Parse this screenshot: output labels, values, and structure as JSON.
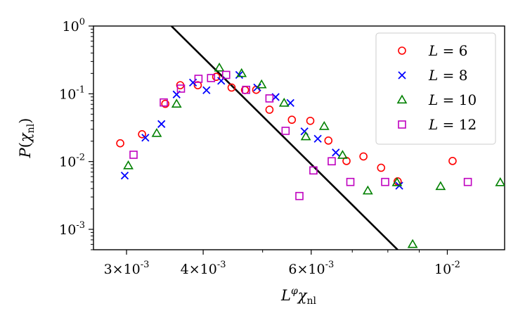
{
  "chart_data": {
    "type": "scatter",
    "xlabel": "L^φ χ_nl",
    "ylabel": "P(χ_nl)",
    "xscale": "log",
    "yscale": "log",
    "xlim": [
      0.00265,
      0.0124
    ],
    "ylim": [
      0.0005,
      1.0
    ],
    "x_ticks": [
      {
        "value": 0.003,
        "mantissa": "3",
        "exp": "-3"
      },
      {
        "value": 0.004,
        "mantissa": "4",
        "exp": "-3"
      },
      {
        "value": 0.006,
        "mantissa": "6",
        "exp": "-3"
      },
      {
        "value": 0.01,
        "mantissa": "",
        "exp": "-2"
      }
    ],
    "y_ticks": [
      {
        "value": 1.0,
        "exp": "0"
      },
      {
        "value": 0.1,
        "exp": "-1"
      },
      {
        "value": 0.01,
        "exp": "-2"
      },
      {
        "value": 0.001,
        "exp": "-3"
      }
    ],
    "legend_position": "top-right",
    "fit_line": {
      "x": [
        0.00355,
        0.0083
      ],
      "y": [
        1.0,
        0.0005
      ],
      "color": "#000000"
    },
    "series": [
      {
        "name": "L = 6",
        "marker": "circle",
        "color": "#ff0000",
        "x": [
          0.00293,
          0.00318,
          0.00347,
          0.00367,
          0.00392,
          0.0042,
          0.00445,
          0.00468,
          0.00488,
          0.00513,
          0.00558,
          0.00598,
          0.0064,
          0.00685,
          0.0073,
          0.0078,
          0.0083,
          0.0102
        ],
        "y": [
          0.0186,
          0.0253,
          0.0711,
          0.1339,
          0.1339,
          0.1779,
          0.1236,
          0.1135,
          0.1144,
          0.0582,
          0.0414,
          0.0399,
          0.0204,
          0.0102,
          0.0119,
          0.0081,
          0.0051,
          0.0102
        ]
      },
      {
        "name": "L = 8",
        "marker": "x",
        "color": "#0000ff",
        "x": [
          0.00298,
          0.00322,
          0.00342,
          0.00362,
          0.00385,
          0.00405,
          0.00428,
          0.00458,
          0.0049,
          0.00525,
          0.00555,
          0.00585,
          0.00615,
          0.00658,
          0.00835
        ],
        "y": [
          0.0062,
          0.0225,
          0.0358,
          0.0977,
          0.1465,
          0.1129,
          0.1555,
          0.1901,
          0.124,
          0.0896,
          0.0732,
          0.0279,
          0.0217,
          0.0136,
          0.0044
        ]
      },
      {
        "name": "L = 10",
        "marker": "triangle",
        "color": "#008000",
        "x": [
          0.00302,
          0.00336,
          0.00362,
          0.00425,
          0.00462,
          0.00498,
          0.00542,
          0.00588,
          0.0063,
          0.00675,
          0.00742,
          0.00828,
          0.00878,
          0.00975,
          0.0122
        ],
        "y": [
          0.0087,
          0.0261,
          0.0707,
          0.2411,
          0.1999,
          0.1364,
          0.073,
          0.0233,
          0.0331,
          0.0124,
          0.0037,
          0.0049,
          0.0006,
          0.0043,
          0.0049
        ]
      },
      {
        "name": "L = 12",
        "marker": "square",
        "color": "#bf00bf",
        "x": [
          0.00308,
          0.00345,
          0.00368,
          0.00393,
          0.00412,
          0.00436,
          0.0047,
          0.00513,
          0.00545,
          0.00574,
          0.00605,
          0.00648,
          0.00695,
          0.00792,
          0.0108
        ],
        "y": [
          0.0126,
          0.0745,
          0.1193,
          0.1664,
          0.1708,
          0.1901,
          0.1144,
          0.0855,
          0.0284,
          0.0031,
          0.0074,
          0.0101,
          0.005,
          0.005,
          0.005
        ]
      }
    ],
    "legend": [
      {
        "var": "L",
        "value": "6",
        "marker": "circle",
        "color": "#ff0000"
      },
      {
        "var": "L",
        "value": "8",
        "marker": "x",
        "color": "#0000ff"
      },
      {
        "var": "L",
        "value": "10",
        "marker": "triangle",
        "color": "#008000"
      },
      {
        "var": "L",
        "value": "12",
        "marker": "square",
        "color": "#bf00bf"
      }
    ]
  }
}
